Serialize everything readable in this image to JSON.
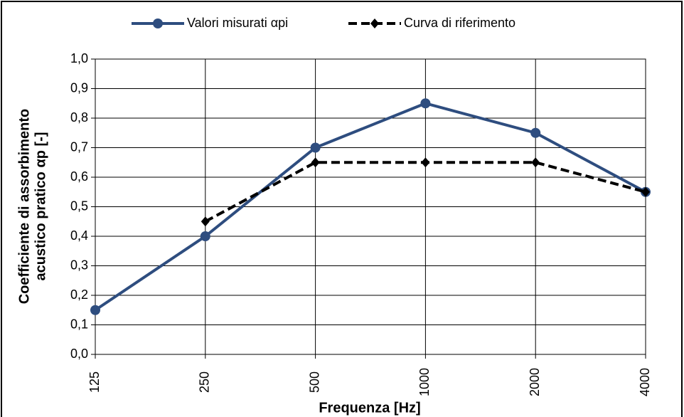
{
  "chart_data": {
    "type": "line",
    "x_label": "Frequenza [Hz]",
    "y_label": [
      "Coefficiente di assorbimento",
      "acustico pratico αp [-]"
    ],
    "categories": [
      "125",
      "250",
      "500",
      "1000",
      "2000",
      "4000"
    ],
    "series": [
      {
        "name": "Valori misurati αpi",
        "color": "#2e4d7f",
        "style": "solid",
        "marker": "circle",
        "values": [
          0.15,
          0.4,
          0.7,
          0.85,
          0.75,
          0.55
        ]
      },
      {
        "name": "Curva di riferimento",
        "color": "#000000",
        "style": "dashed",
        "marker": "diamond",
        "values": [
          null,
          0.45,
          0.65,
          0.65,
          0.65,
          0.55
        ]
      }
    ],
    "ylim": [
      0,
      1.0
    ],
    "yticks": [
      {
        "value": 0,
        "label": "0,0"
      },
      {
        "value": 0.1,
        "label": "0,1"
      },
      {
        "value": 0.2,
        "label": "0,2"
      },
      {
        "value": 0.3,
        "label": "0,3"
      },
      {
        "value": 0.4,
        "label": "0,4"
      },
      {
        "value": 0.5,
        "label": "0,5"
      },
      {
        "value": 0.6,
        "label": "0,6"
      },
      {
        "value": 0.7,
        "label": "0,7"
      },
      {
        "value": 0.8,
        "label": "0,8"
      },
      {
        "value": 0.9,
        "label": "0,9"
      },
      {
        "value": 1.0,
        "label": "1,0"
      }
    ],
    "grid": true,
    "legend": "top"
  }
}
